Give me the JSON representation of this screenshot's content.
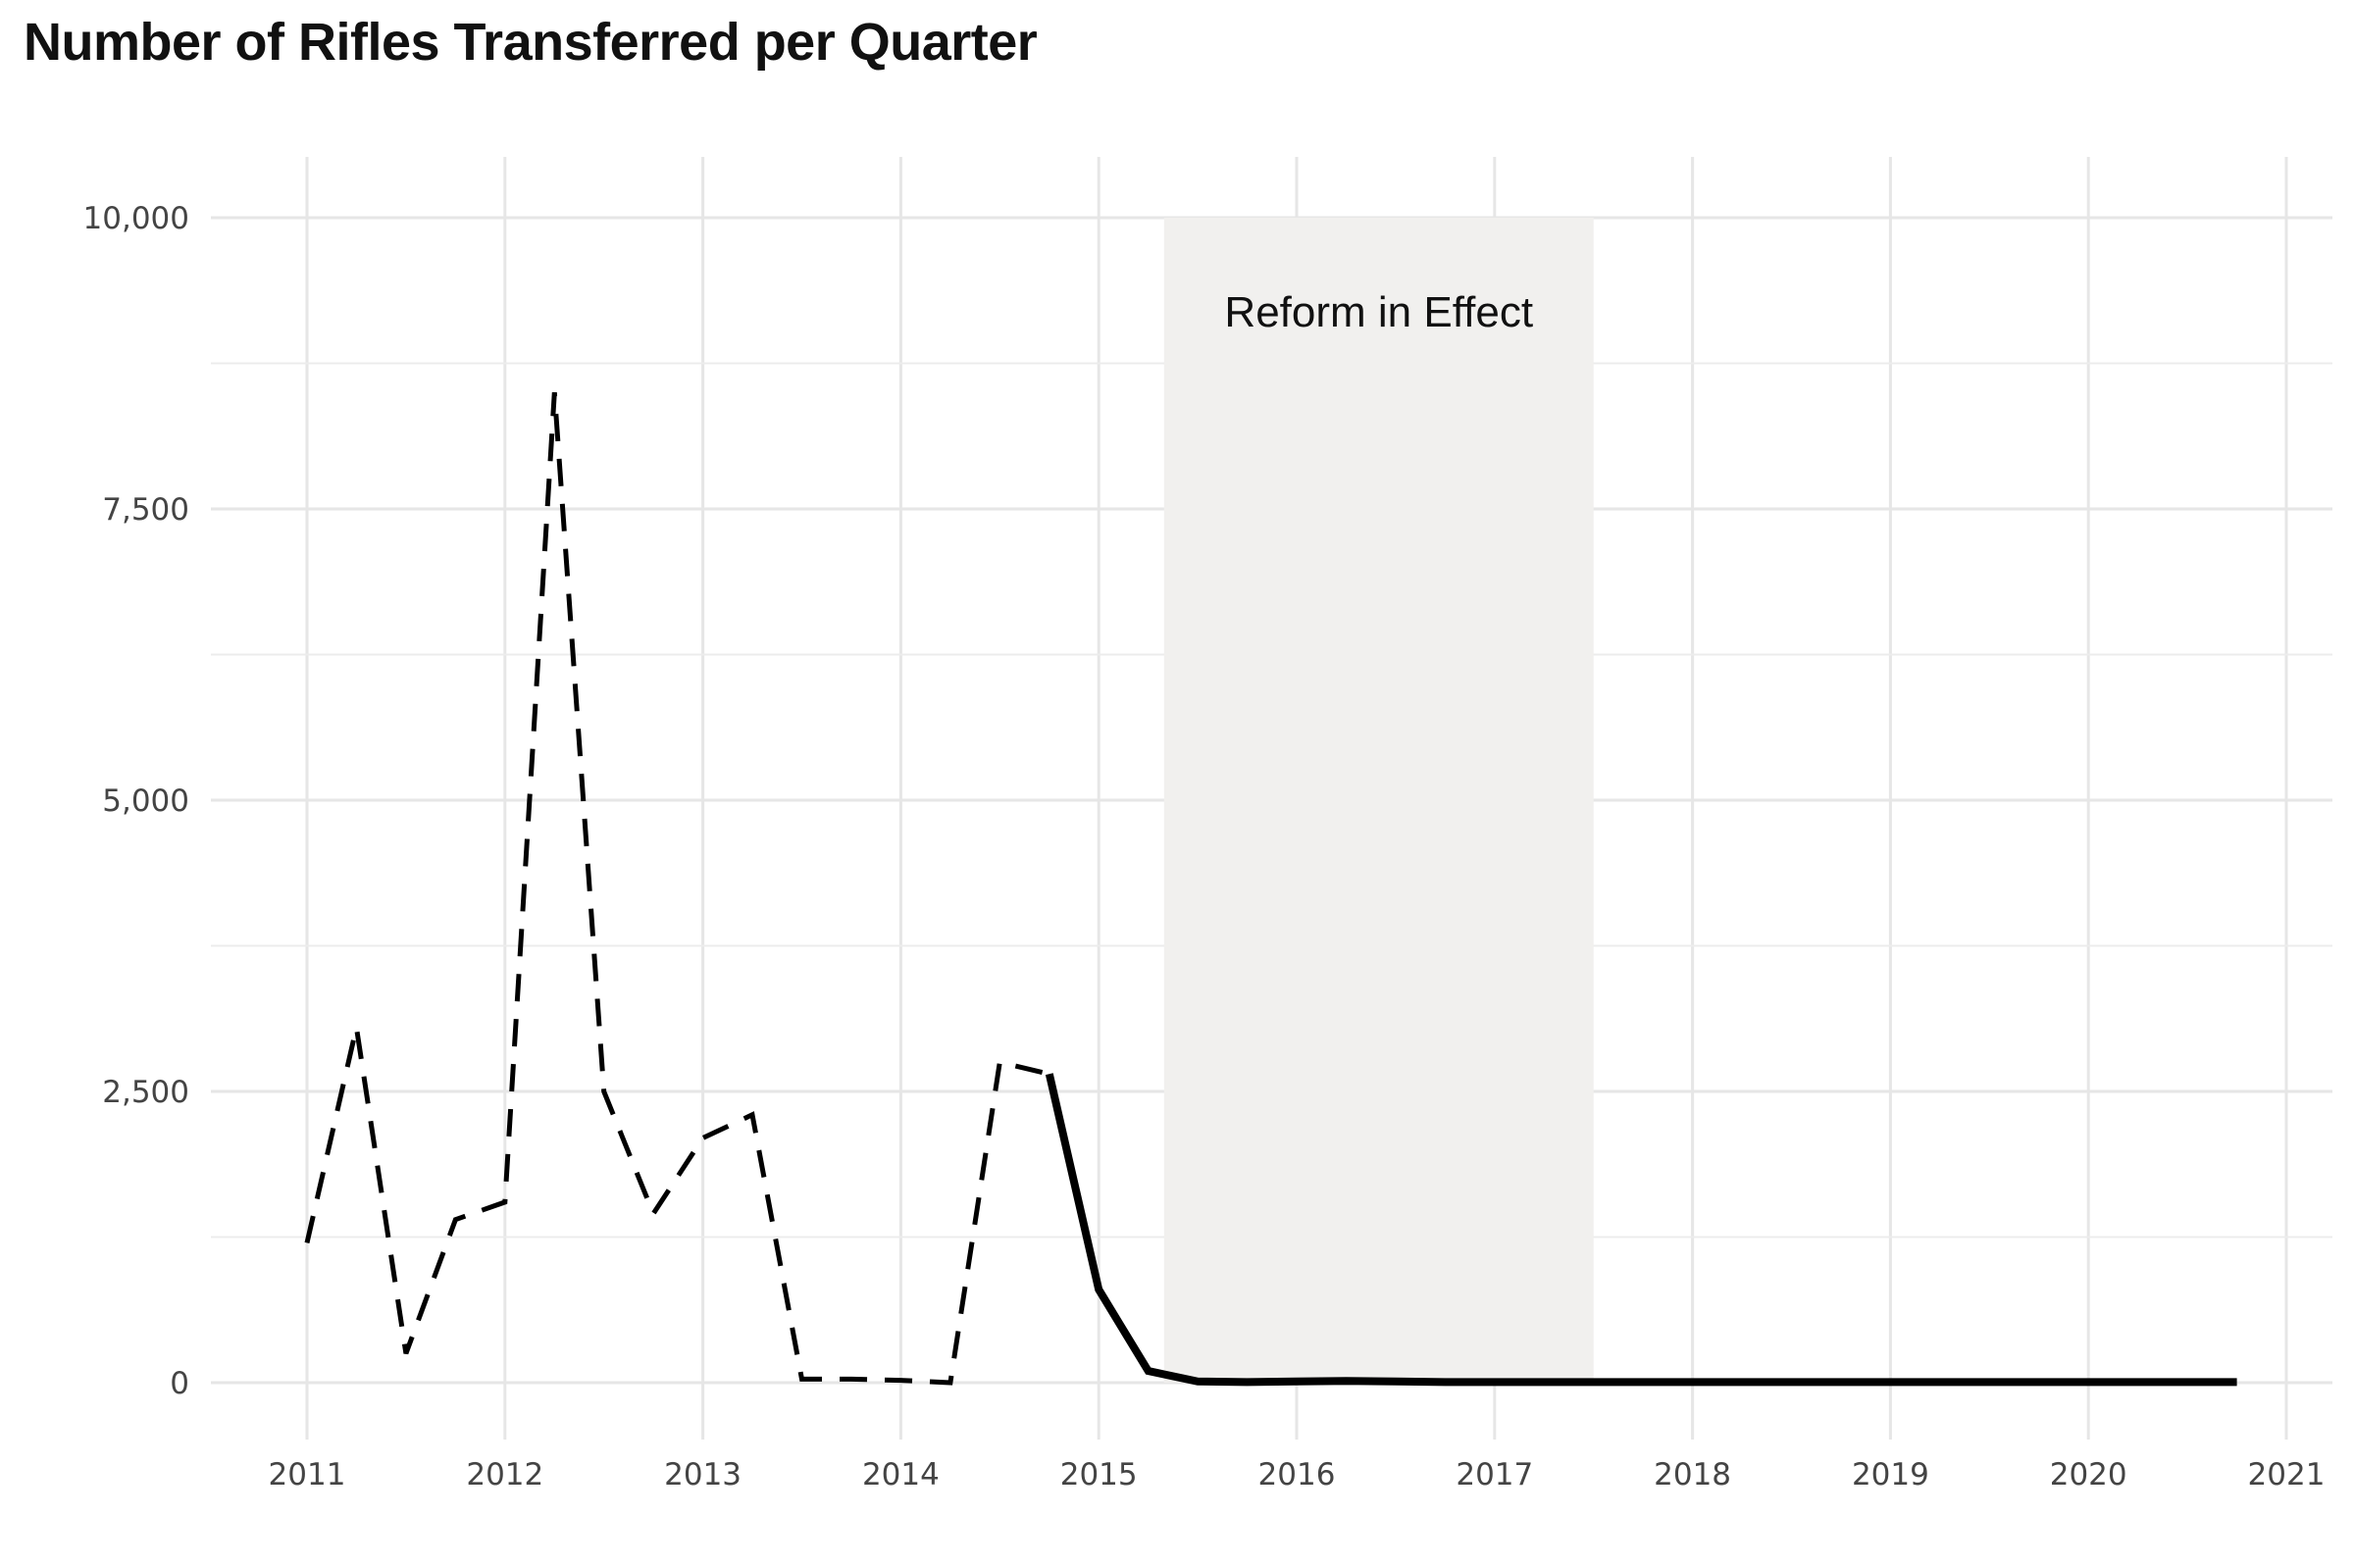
{
  "chart_data": {
    "type": "line",
    "title": "Number of Rifles Transferred per Quarter",
    "xlabel": "",
    "ylabel": "",
    "xlim": [
      2010.5,
      2021.25
    ],
    "ylim": [
      -500,
      10500
    ],
    "x_ticks": [
      2011,
      2012,
      2013,
      2014,
      2015,
      2016,
      2017,
      2018,
      2019,
      2020,
      2021
    ],
    "x_tick_labels": [
      "2011",
      "2012",
      "2013",
      "2014",
      "2015",
      "2016",
      "2017",
      "2018",
      "2019",
      "2020",
      "2021"
    ],
    "y_ticks": [
      0,
      2500,
      5000,
      7500,
      10000
    ],
    "y_tick_labels": [
      "0",
      "2,500",
      "5,000",
      "7,500",
      "10,000"
    ],
    "y_minor_ticks": [
      1250,
      3750,
      6250,
      8750
    ],
    "grid": true,
    "legend": "none",
    "shaded_region": {
      "x_start": 2015.33,
      "x_end": 2017.5,
      "y_top": 10000,
      "color": "#f1f0ee",
      "label": "Reform in Effect"
    },
    "series": [
      {
        "style": "dashed",
        "color": "#000000",
        "x": [
          2011.0,
          2011.25,
          2011.5,
          2011.75,
          2012.0,
          2012.25,
          2012.5,
          2012.75,
          2013.0,
          2013.25,
          2013.5,
          2013.75,
          2014.0,
          2014.25,
          2014.5,
          2014.75
        ],
        "values": [
          1200,
          3050,
          250,
          1400,
          1550,
          8500,
          2500,
          1450,
          2100,
          2300,
          30,
          30,
          20,
          0,
          2750,
          2650
        ]
      },
      {
        "style": "solid",
        "color": "#000000",
        "x": [
          2014.75,
          2015.0,
          2015.25,
          2015.5,
          2015.75,
          2016.0,
          2016.25,
          2016.5,
          2016.75,
          2017.0,
          2017.25,
          2017.5,
          2017.75,
          2018.0,
          2018.25,
          2018.5,
          2018.75,
          2019.0,
          2019.25,
          2019.5,
          2019.75,
          2020.0,
          2020.25,
          2020.5,
          2020.75
        ],
        "values": [
          2650,
          800,
          100,
          10,
          5,
          10,
          15,
          10,
          5,
          5,
          5,
          5,
          5,
          5,
          5,
          5,
          5,
          5,
          5,
          5,
          5,
          5,
          5,
          5,
          5
        ]
      }
    ]
  }
}
